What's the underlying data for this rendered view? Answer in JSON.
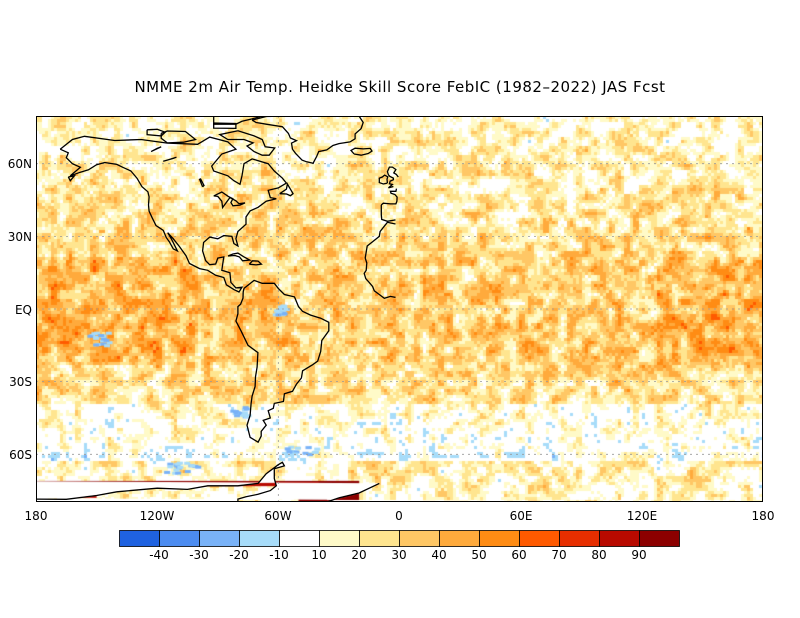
{
  "title": "NMME 2m Air Temp. Heidke Skill Score FebIC (1982–2022) JAS Fcst",
  "lat_labels": [
    "60N",
    "30N",
    "EQ",
    "30S",
    "60S"
  ],
  "lon_labels": [
    "180",
    "120W",
    "60W",
    "0",
    "60E",
    "120E",
    "180"
  ],
  "colorbar": {
    "colors": [
      "#1f62e0",
      "#4c8cf0",
      "#79b2f7",
      "#a7dcf9",
      "#ffffff",
      "#fffac8",
      "#ffe58f",
      "#ffc765",
      "#ffaa3c",
      "#ff8c14",
      "#ff5a00",
      "#e62e00",
      "#b80a00",
      "#8c0000"
    ],
    "labels": [
      "-40",
      "-30",
      "-20",
      "-10",
      "10",
      "20",
      "30",
      "40",
      "50",
      "60",
      "70",
      "80",
      "90"
    ]
  },
  "map_colors": {
    "land_outline": "#000000",
    "grid": "#9a9a9a",
    "ocean_base": "#ffe6b0"
  }
}
